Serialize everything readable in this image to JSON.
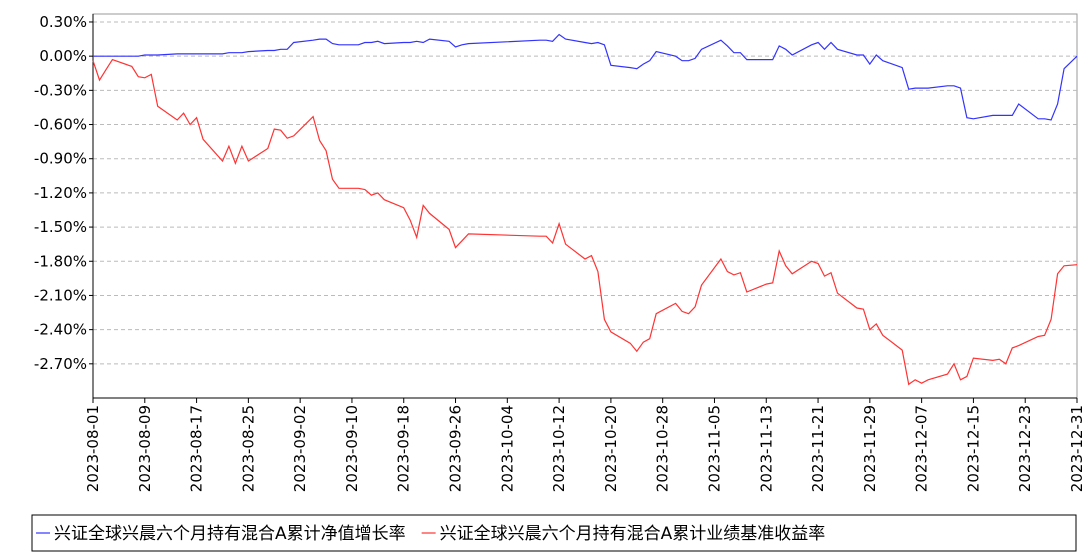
{
  "chart_data": {
    "type": "line",
    "x": [
      "2023-08-01",
      "2023-08-02",
      "2023-08-03",
      "2023-08-04",
      "2023-08-07",
      "2023-08-08",
      "2023-08-09",
      "2023-08-10",
      "2023-08-11",
      "2023-08-14",
      "2023-08-15",
      "2023-08-16",
      "2023-08-17",
      "2023-08-18",
      "2023-08-21",
      "2023-08-22",
      "2023-08-23",
      "2023-08-24",
      "2023-08-25",
      "2023-08-28",
      "2023-08-29",
      "2023-08-30",
      "2023-08-31",
      "2023-09-01",
      "2023-09-04",
      "2023-09-05",
      "2023-09-06",
      "2023-09-07",
      "2023-09-08",
      "2023-09-11",
      "2023-09-12",
      "2023-09-13",
      "2023-09-14",
      "2023-09-15",
      "2023-09-18",
      "2023-09-19",
      "2023-09-20",
      "2023-09-21",
      "2023-09-22",
      "2023-09-25",
      "2023-09-26",
      "2023-09-27",
      "2023-09-28",
      "2023-10-09",
      "2023-10-10",
      "2023-10-11",
      "2023-10-12",
      "2023-10-13",
      "2023-10-16",
      "2023-10-17",
      "2023-10-18",
      "2023-10-19",
      "2023-10-20",
      "2023-10-23",
      "2023-10-24",
      "2023-10-25",
      "2023-10-26",
      "2023-10-27",
      "2023-10-30",
      "2023-10-31",
      "2023-11-01",
      "2023-11-02",
      "2023-11-03",
      "2023-11-06",
      "2023-11-07",
      "2023-11-08",
      "2023-11-09",
      "2023-11-10",
      "2023-11-13",
      "2023-11-14",
      "2023-11-15",
      "2023-11-16",
      "2023-11-17",
      "2023-11-20",
      "2023-11-21",
      "2023-11-22",
      "2023-11-23",
      "2023-11-24",
      "2023-11-27",
      "2023-11-28",
      "2023-11-29",
      "2023-11-30",
      "2023-12-01",
      "2023-12-04",
      "2023-12-05",
      "2023-12-06",
      "2023-12-07",
      "2023-12-08",
      "2023-12-11",
      "2023-12-12",
      "2023-12-13",
      "2023-12-14",
      "2023-12-15",
      "2023-12-18",
      "2023-12-19",
      "2023-12-20",
      "2023-12-21",
      "2023-12-22",
      "2023-12-25",
      "2023-12-26",
      "2023-12-27",
      "2023-12-28",
      "2023-12-29",
      "2023-12-31"
    ],
    "series": [
      {
        "name": "兴证全球兴晨六个月持有混合A累计净值增长率",
        "color": "#3333ff",
        "values": [
          0,
          0,
          0,
          0,
          0,
          0,
          0.01,
          0.01,
          0.01,
          0.02,
          0.02,
          0.02,
          0.02,
          0.02,
          0.02,
          0.03,
          0.03,
          0.03,
          0.04,
          0.05,
          0.05,
          0.06,
          0.06,
          0.12,
          0.14,
          0.15,
          0.15,
          0.11,
          0.1,
          0.1,
          0.12,
          0.12,
          0.13,
          0.11,
          0.12,
          0.12,
          0.13,
          0.12,
          0.15,
          0.13,
          0.08,
          0.1,
          0.11,
          0.14,
          0.14,
          0.13,
          0.19,
          0.15,
          0.12,
          0.11,
          0.12,
          0.1,
          -0.08,
          -0.1,
          -0.11,
          -0.07,
          -0.04,
          0.04,
          0.0,
          -0.04,
          -0.04,
          -0.02,
          0.06,
          0.14,
          0.09,
          0.03,
          0.03,
          -0.03,
          -0.03,
          -0.03,
          0.09,
          0.06,
          0.01,
          0.1,
          0.12,
          0.06,
          0.12,
          0.06,
          0.01,
          0.01,
          -0.07,
          0.01,
          -0.04,
          -0.1,
          -0.29,
          -0.28,
          -0.28,
          -0.28,
          -0.26,
          -0.26,
          -0.28,
          -0.54,
          -0.55,
          -0.52,
          -0.52,
          -0.52,
          -0.52,
          -0.42,
          -0.55,
          -0.55,
          -0.56,
          -0.42,
          -0.11,
          0.0
        ]
      },
      {
        "name": "兴证全球兴晨六个月持有混合A累计业绩基准收益率",
        "color": "#ff3333",
        "values": [
          -0.04,
          -0.21,
          -0.12,
          -0.03,
          -0.09,
          -0.18,
          -0.19,
          -0.16,
          -0.44,
          -0.56,
          -0.5,
          -0.6,
          -0.54,
          -0.73,
          -0.92,
          -0.79,
          -0.94,
          -0.79,
          -0.92,
          -0.81,
          -0.64,
          -0.65,
          -0.72,
          -0.7,
          -0.53,
          -0.74,
          -0.83,
          -1.08,
          -1.16,
          -1.16,
          -1.17,
          -1.22,
          -1.2,
          -1.26,
          -1.33,
          -1.44,
          -1.59,
          -1.31,
          -1.38,
          -1.52,
          -1.68,
          -1.62,
          -1.56,
          -1.58,
          -1.58,
          -1.64,
          -1.47,
          -1.65,
          -1.78,
          -1.75,
          -1.89,
          -2.31,
          -2.42,
          -2.52,
          -2.59,
          -2.51,
          -2.48,
          -2.26,
          -2.17,
          -2.24,
          -2.26,
          -2.2,
          -2.01,
          -1.78,
          -1.89,
          -1.92,
          -1.9,
          -2.07,
          -2.0,
          -1.99,
          -1.71,
          -1.84,
          -1.91,
          -1.8,
          -1.82,
          -1.93,
          -1.9,
          -2.08,
          -2.21,
          -2.22,
          -2.4,
          -2.35,
          -2.45,
          -2.58,
          -2.88,
          -2.84,
          -2.87,
          -2.84,
          -2.79,
          -2.7,
          -2.84,
          -2.81,
          -2.65,
          -2.67,
          -2.66,
          -2.7,
          -2.56,
          -2.54,
          -2.46,
          -2.45,
          -2.31,
          -1.91,
          -1.84,
          -1.83
        ]
      }
    ],
    "xlim": [
      "2023-08-01",
      "2023-12-31"
    ],
    "xticks": [
      "2023-08-01",
      "2023-08-09",
      "2023-08-17",
      "2023-08-25",
      "2023-09-02",
      "2023-09-10",
      "2023-09-18",
      "2023-09-26",
      "2023-10-04",
      "2023-10-12",
      "2023-10-20",
      "2023-10-28",
      "2023-11-05",
      "2023-11-13",
      "2023-11-21",
      "2023-11-29",
      "2023-12-07",
      "2023-12-15",
      "2023-12-23",
      "2023-12-31"
    ],
    "ylim": [
      -3.0,
      0.37
    ],
    "yticks": [
      {
        "value": 0.3,
        "label": "0.30%"
      },
      {
        "value": 0,
        "label": "0.00%"
      },
      {
        "value": -0.3,
        "label": "-0.30%"
      },
      {
        "value": -0.6,
        "label": "-0.60%"
      },
      {
        "value": -0.9,
        "label": "-0.90%"
      },
      {
        "value": -1.2,
        "label": "-1.20%"
      },
      {
        "value": -1.5,
        "label": "-1.50%"
      },
      {
        "value": -1.8,
        "label": "-1.80%"
      },
      {
        "value": -2.1,
        "label": "-2.10%"
      },
      {
        "value": -2.4,
        "label": "-2.40%"
      },
      {
        "value": -2.7,
        "label": "-2.70%"
      }
    ],
    "grid": true,
    "legend": "bottom"
  }
}
